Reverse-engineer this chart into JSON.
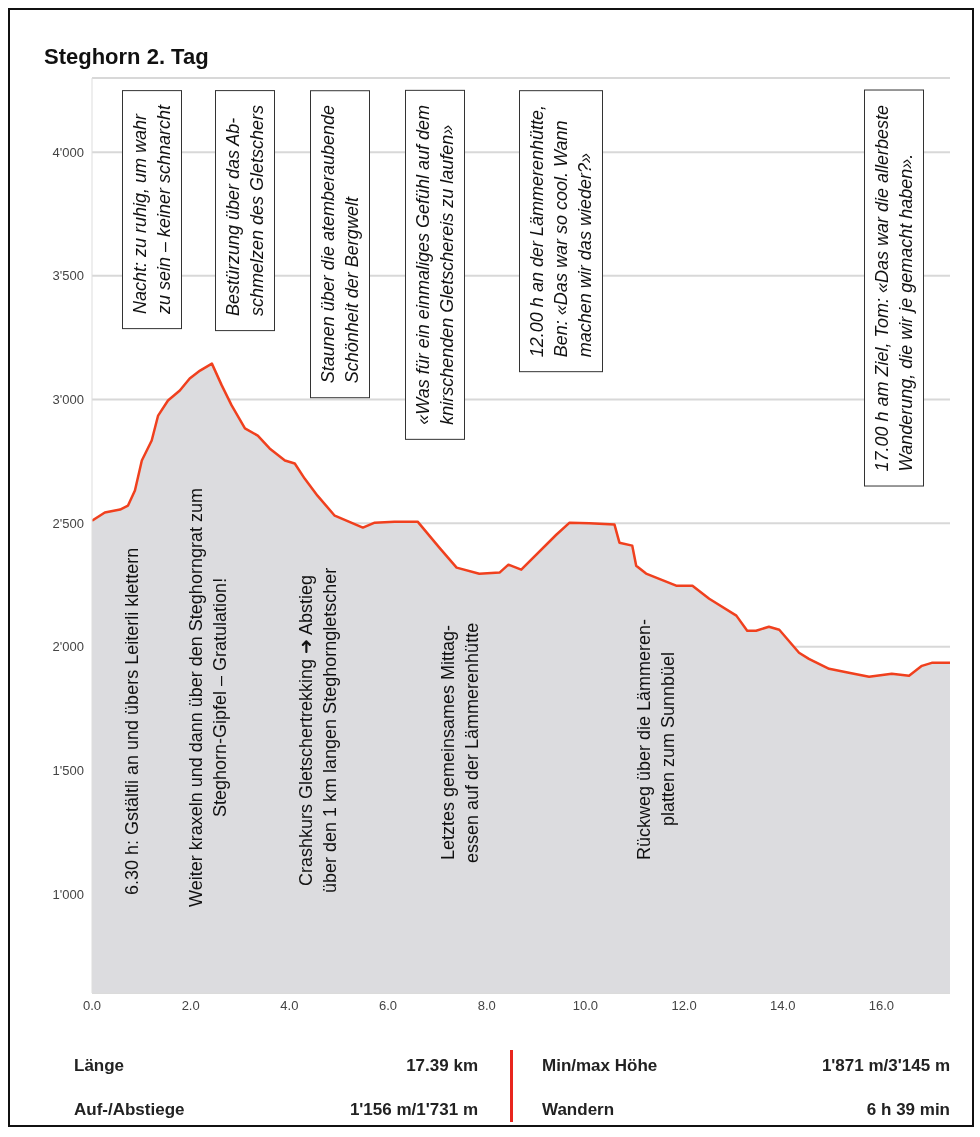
{
  "chart_data": {
    "type": "area",
    "title": "Steghorn 2. Tag",
    "x": [
      0,
      0.26,
      0.57,
      0.73,
      0.87,
      1.01,
      1.21,
      1.34,
      1.54,
      1.78,
      1.98,
      2.19,
      2.43,
      2.63,
      2.83,
      3.1,
      3.36,
      3.6,
      3.91,
      4.11,
      4.31,
      4.57,
      4.92,
      5.49,
      5.73,
      6.13,
      6.6,
      7.04,
      7.39,
      7.85,
      8.26,
      8.44,
      8.7,
      9.41,
      9.68,
      10.08,
      10.59,
      10.69,
      10.95,
      11.03,
      11.23,
      11.84,
      12.17,
      12.51,
      13.06,
      13.28,
      13.46,
      13.72,
      13.93,
      14.33,
      14.53,
      14.94,
      15.34,
      15.75,
      16.21,
      16.56,
      16.82,
      17.02,
      17.39
    ],
    "series": [
      {
        "color": "#f0401e",
        "values": [
          2510,
          2543,
          2555,
          2571,
          2632,
          2753,
          2834,
          2935,
          2996,
          3036,
          3085,
          3117,
          3145,
          3057,
          2976,
          2883,
          2854,
          2802,
          2753,
          2741,
          2680,
          2611,
          2530,
          2482,
          2502,
          2506,
          2506,
          2401,
          2320,
          2295,
          2300,
          2332,
          2312,
          2453,
          2502,
          2500,
          2494,
          2421,
          2409,
          2328,
          2296,
          2247,
          2247,
          2194,
          2126,
          2065,
          2065,
          2081,
          2069,
          1976,
          1951,
          1911,
          1895,
          1879,
          1891,
          1883,
          1923,
          1935,
          1935
        ]
      }
    ],
    "xlim": [
      0,
      17.39
    ],
    "xticks": [
      {
        "value": 0,
        "label": "0.0"
      },
      {
        "value": 2,
        "label": "2.0"
      },
      {
        "value": 4,
        "label": "4.0"
      },
      {
        "value": 6,
        "label": "6.0"
      },
      {
        "value": 8,
        "label": "8.0"
      },
      {
        "value": 10,
        "label": "10.0"
      },
      {
        "value": 12,
        "label": "12.0"
      },
      {
        "value": 14,
        "label": "14.0"
      },
      {
        "value": 16,
        "label": "16.0"
      }
    ],
    "ylim": [
      600,
      4300
    ],
    "yticks": [
      {
        "value": 1000,
        "label": "1'000"
      },
      {
        "value": 1500,
        "label": "1'500"
      },
      {
        "value": 2000,
        "label": "2'000"
      },
      {
        "value": 2500,
        "label": "2'500"
      },
      {
        "value": 3000,
        "label": "3'000"
      },
      {
        "value": 3500,
        "label": "3'500"
      },
      {
        "value": 4000,
        "label": "4'000"
      }
    ],
    "grid": "y",
    "annotations": [
      "Nacht: zu ruhig, um wahr\nzu sein – keiner schnarcht",
      "Bestürzung über das Ab-\nschmelzen des Gletschers",
      "Staunen über die atemberaubende\nSchönheit der Bergwelt",
      "«Was für ein einmaliges Gefühl auf dem\nknirschenden Gletschereis zu laufen»",
      "12.00 h an der Lämmerenhütte,\nBen: «Das war so cool. Wann\nmachen wir das wieder?»",
      "17.00 h am Ziel, Tom: «Das war die allerbeste\nWanderung, die wir je gemacht haben».",
      "6.30 h: Gstältli an und übers Leiterli klettern",
      "Weiter kraxeln und dann über den Steghorngrat zum\nSteghorn-Gipfel – Gratulation!",
      "Crashkurs Gletschertrekking ➜ Abstieg\nüber den 1 km langen Steghorngletscher",
      "Letztes gemeinsames Mittag-\nessen auf der Lämmerenhütte",
      "Rückweg über die Lämmeren-\nplatten zum Sunnbüel",
      "Länge",
      "17.39 km",
      "Min/max Höhe",
      "1'871 m/3'145 m",
      "Auf-/Abstiege",
      "1'156 m/1'731 m",
      "Wandern",
      "6 h 39 min"
    ]
  }
}
